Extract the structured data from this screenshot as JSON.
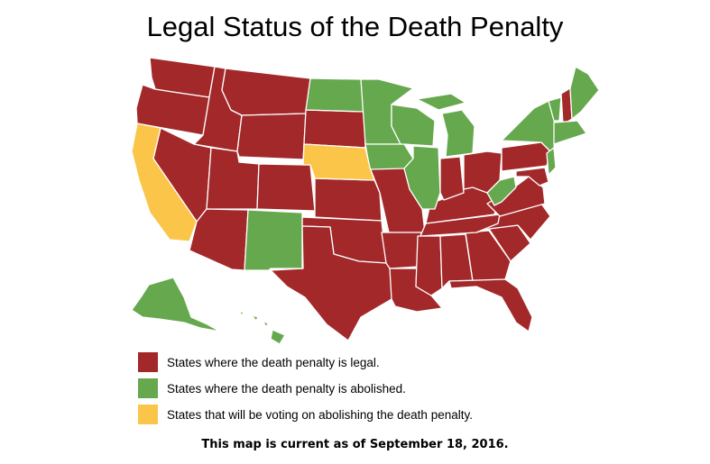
{
  "title": "Legal Status of the Death Penalty",
  "colors": {
    "legal": "#a3282a",
    "abolished": "#66a84d",
    "voting": "#fbc549"
  },
  "legend": [
    {
      "key": "legal",
      "label": "States where the death penalty is legal."
    },
    {
      "key": "abolished",
      "label": "States where the death penalty is abolished."
    },
    {
      "key": "voting",
      "label": "States that will be voting on abolishing the death penalty."
    }
  ],
  "note": "This map is current as of September 18, 2016."
}
